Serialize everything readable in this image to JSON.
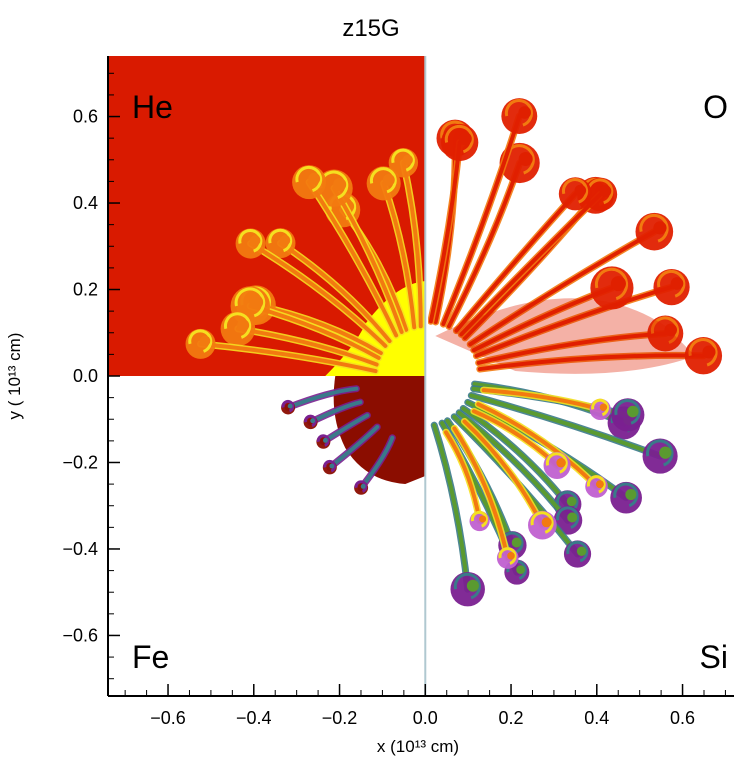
{
  "chart_data": {
    "type": "heatmap",
    "title": "z15G",
    "xlabel": "x (10¹³ cm)",
    "ylabel": "y ( 10¹³ cm)",
    "xlim": [
      -0.74,
      0.72
    ],
    "ylim": [
      -0.74,
      0.74
    ],
    "x_ticks": [
      -0.6,
      -0.4,
      -0.2,
      0.0,
      0.2,
      0.4,
      0.6
    ],
    "x_tick_labels": [
      "−0.6",
      "−0.4",
      "−0.2",
      "0.0",
      "0.2",
      "0.4",
      "0.6"
    ],
    "y_ticks": [
      0.6,
      0.4,
      0.2,
      0.0,
      -0.2,
      -0.4,
      -0.6
    ],
    "y_tick_labels": [
      "0.6",
      "0.4",
      "0.2",
      "0.0",
      "−0.2",
      "−0.4",
      "−0.6"
    ],
    "quadrants": [
      {
        "element": "He",
        "position": "top-left",
        "background": "#d91a00"
      },
      {
        "element": "O",
        "position": "top-right",
        "background": "#ffffff"
      },
      {
        "element": "Fe",
        "position": "bottom-left",
        "background": "#ffffff"
      },
      {
        "element": "Si",
        "position": "bottom-right",
        "background": "#ffffff"
      }
    ],
    "colors": {
      "he_background": "#d91a00",
      "fe_core": "#8b0d00",
      "inner_yellow": "#ffff00",
      "plume_red": "#e02000",
      "plume_orange": "#f27a10",
      "plume_yellow": "#f5e020",
      "plume_green": "#5a9a30",
      "plume_teal": "#3a7a8a",
      "plume_purple": "#7a2090",
      "plume_magenta": "#c060d0"
    }
  }
}
